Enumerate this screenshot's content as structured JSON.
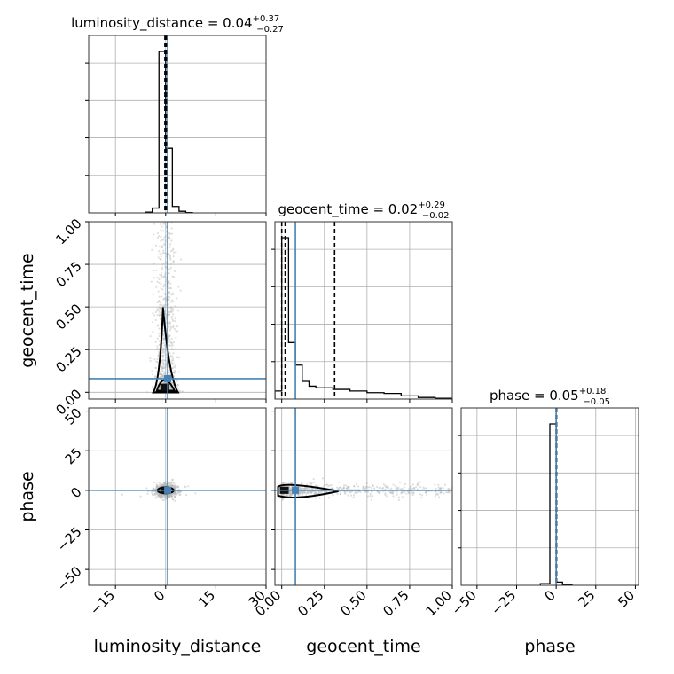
{
  "chart_data": {
    "type": "corner",
    "parameters": [
      "luminosity_distance",
      "geocent_time",
      "phase"
    ],
    "axis_labels": {
      "luminosity_distance": "luminosity_distance",
      "geocent_time": "geocent_time",
      "phase": "phase"
    },
    "titles": [
      {
        "param": "luminosity_distance",
        "base": "luminosity_distance = 0.04",
        "plus": "+0.37",
        "minus": "−0.27"
      },
      {
        "param": "geocent_time",
        "base": "geocent_time = 0.02",
        "plus": "+0.29",
        "minus": "−0.02"
      },
      {
        "param": "phase",
        "base": "phase = 0.05",
        "plus": "+0.18",
        "minus": "−0.05"
      }
    ],
    "ranges": {
      "luminosity_distance": [
        -23,
        30
      ],
      "geocent_time": [
        -0.04,
        1.0
      ],
      "phase": [
        -60,
        52
      ]
    },
    "ticks": {
      "luminosity_distance": {
        "values": [
          -15,
          0,
          15,
          30
        ],
        "labels": [
          "−15",
          "0",
          "15",
          "30"
        ]
      },
      "geocent_time": {
        "values": [
          0.0,
          0.25,
          0.5,
          0.75,
          1.0
        ],
        "labels": [
          "0.00",
          "0.25",
          "0.50",
          "0.75",
          "1.00"
        ]
      },
      "phase": {
        "values": [
          -50,
          -25,
          0,
          25,
          50
        ],
        "labels": [
          "−50",
          "−25",
          "0",
          "25",
          "50"
        ]
      }
    },
    "truths": {
      "luminosity_distance": 0.6,
      "geocent_time": 0.08,
      "phase": 0.0
    },
    "quantiles": {
      "luminosity_distance": [
        -0.23,
        0.04,
        0.41
      ],
      "geocent_time": [
        0.0,
        0.02,
        0.31
      ],
      "phase": [
        0.0,
        0.05,
        0.23
      ]
    },
    "histograms": {
      "luminosity_distance": {
        "edges": [
          -6,
          -4,
          -2,
          0,
          2,
          4,
          6,
          8
        ],
        "counts": [
          0.005,
          0.03,
          1.0,
          0.4,
          0.04,
          0.01,
          0.002
        ]
      },
      "geocent_time": {
        "edges": [
          -0.04,
          0.0,
          0.04,
          0.08,
          0.12,
          0.16,
          0.2,
          0.3,
          0.4,
          0.5,
          0.6,
          0.7,
          0.8,
          0.9,
          1.0
        ],
        "counts": [
          0.05,
          1.0,
          0.35,
          0.21,
          0.11,
          0.08,
          0.07,
          0.06,
          0.05,
          0.04,
          0.035,
          0.02,
          0.01,
          0.005
        ]
      },
      "phase": {
        "edges": [
          -10,
          -4,
          0,
          4,
          10
        ],
        "counts": [
          0.01,
          1.0,
          0.02,
          0.005
        ]
      }
    },
    "grid": true
  }
}
